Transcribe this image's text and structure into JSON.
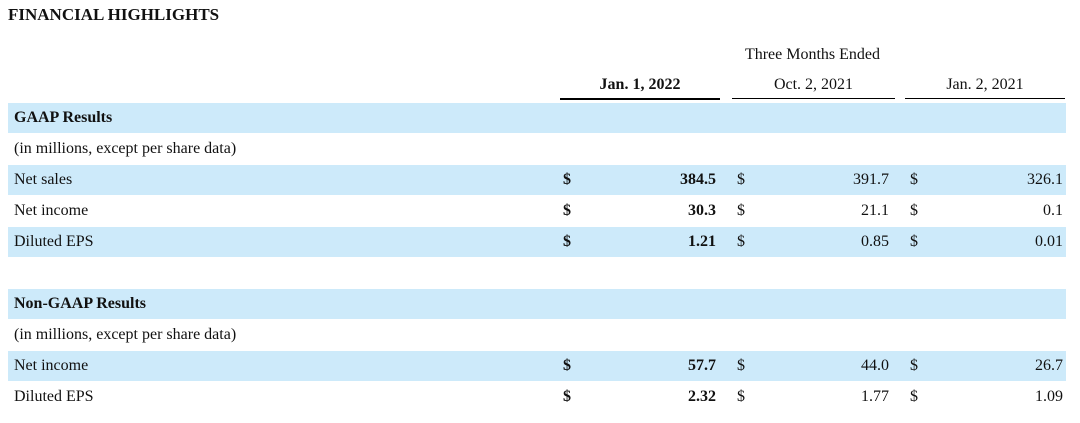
{
  "title": "FINANCIAL HIGHLIGHTS",
  "header": {
    "group": "Three Months Ended",
    "columns": [
      "Jan. 1, 2022",
      "Oct. 2, 2021",
      "Jan. 2, 2021"
    ]
  },
  "currency": "$",
  "sections": [
    {
      "title": "GAAP Results",
      "note": "(in millions, except per share data)",
      "rows": [
        {
          "label": "Net sales",
          "values": [
            "384.5",
            "391.7",
            "326.1"
          ]
        },
        {
          "label": "Net income",
          "values": [
            "30.3",
            "21.1",
            "0.1"
          ]
        },
        {
          "label": "Diluted EPS",
          "values": [
            "1.21",
            "0.85",
            "0.01"
          ]
        }
      ]
    },
    {
      "title": "Non-GAAP Results",
      "note": "(in millions, except per share data)",
      "rows": [
        {
          "label": "Net income",
          "values": [
            "57.7",
            "44.0",
            "26.7"
          ]
        },
        {
          "label": "Diluted EPS",
          "values": [
            "2.32",
            "1.77",
            "1.09"
          ]
        }
      ]
    }
  ]
}
